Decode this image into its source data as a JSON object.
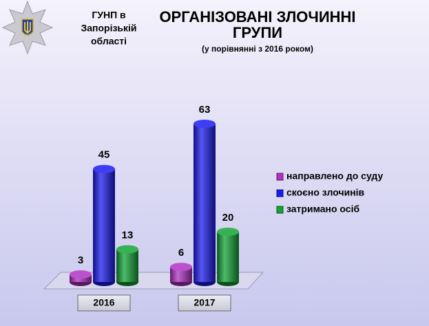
{
  "header": {
    "org_lines": [
      "ГУНП  в",
      "Запорізькій",
      "області"
    ]
  },
  "chart_data": {
    "type": "bar3d",
    "title_lines": [
      "ОРГАНІЗОВАНІ ЗЛОЧИННІ",
      "ГРУПИ"
    ],
    "subtitle": "(у порівнянні з 2016 роком)",
    "categories": [
      "2016",
      "2017"
    ],
    "series": [
      {
        "name": "направлено до суду",
        "color": "#b032c4",
        "values": [
          3,
          6
        ]
      },
      {
        "name": "скоєно злочинів",
        "color": "#1c1cf0",
        "values": [
          45,
          63
        ]
      },
      {
        "name": "затримано осіб",
        "color": "#12a436",
        "values": [
          13,
          20
        ]
      }
    ],
    "legend": "right"
  }
}
